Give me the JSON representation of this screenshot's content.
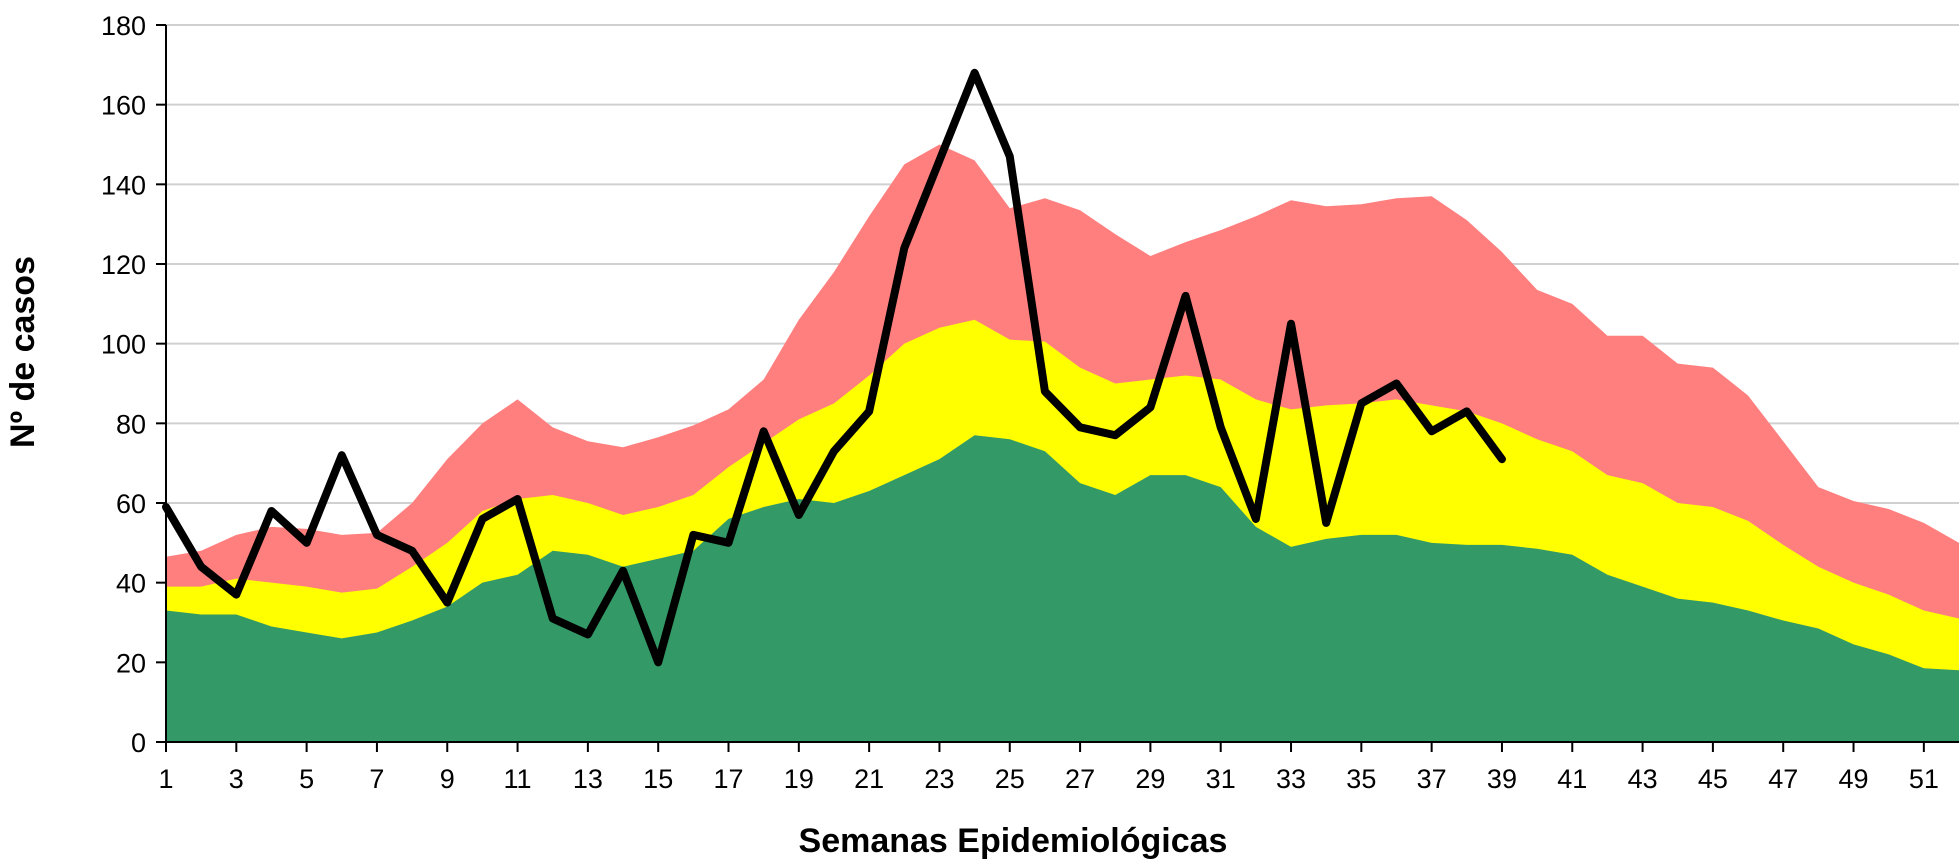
{
  "chart_data": {
    "type": "area",
    "x_label": "Semanas Epidemiológicas",
    "y_label": "Nº de casos",
    "x": [
      1,
      2,
      3,
      4,
      5,
      6,
      7,
      8,
      9,
      10,
      11,
      12,
      13,
      14,
      15,
      16,
      17,
      18,
      19,
      20,
      21,
      22,
      23,
      24,
      25,
      26,
      27,
      28,
      29,
      30,
      31,
      32,
      33,
      34,
      35,
      36,
      37,
      38,
      39,
      40,
      41,
      42,
      43,
      44,
      45,
      46,
      47,
      48,
      49,
      50,
      51,
      52
    ],
    "xlim": [
      1,
      52
    ],
    "xticks": [
      1,
      3,
      5,
      7,
      9,
      11,
      13,
      15,
      17,
      19,
      21,
      23,
      25,
      27,
      29,
      31,
      33,
      35,
      37,
      39,
      41,
      43,
      45,
      47,
      49,
      51
    ],
    "ylim": [
      0,
      180
    ],
    "yticks": [
      0,
      20,
      40,
      60,
      80,
      100,
      120,
      140,
      160,
      180
    ],
    "grid": true,
    "series": [
      {
        "kind": "area",
        "color": "#ff7f7f",
        "values": [
          46.5,
          48,
          52,
          54,
          53.5,
          52,
          52.5,
          60,
          71,
          80,
          86,
          79,
          75.5,
          74,
          76.5,
          79.5,
          83.5,
          91,
          106,
          118,
          132,
          145,
          150,
          146,
          134,
          136.5,
          133.5,
          127.5,
          122,
          125.5,
          128.5,
          132,
          136,
          134.5,
          135,
          136.5,
          137,
          131,
          123,
          113.5,
          110,
          102,
          102,
          95,
          94,
          87,
          75.5,
          64,
          60.5,
          58.5,
          55,
          50
        ]
      },
      {
        "kind": "area",
        "color": "#ffff00",
        "values": [
          39,
          39,
          41,
          40,
          39,
          37.5,
          38.5,
          44,
          50,
          58,
          61,
          62,
          60,
          57,
          59,
          62,
          69,
          75,
          81,
          85,
          92,
          100,
          104,
          106,
          101,
          100.5,
          94,
          90,
          91,
          92,
          91,
          86,
          83.5,
          84.5,
          85,
          86,
          84.5,
          83,
          80,
          76,
          73,
          67,
          65,
          60,
          59,
          55.5,
          49.5,
          44,
          40,
          37,
          33,
          31
        ]
      },
      {
        "kind": "area",
        "color": "#339966",
        "values": [
          33,
          32,
          32,
          29,
          27.5,
          26,
          27.5,
          30.5,
          34,
          40,
          42,
          48,
          47,
          44,
          46,
          48,
          56,
          59,
          61,
          60,
          63,
          67,
          71,
          77,
          76,
          73,
          65,
          62,
          67,
          67,
          64,
          54,
          49,
          51,
          52,
          52,
          50,
          49.5,
          49.5,
          48.5,
          47,
          42,
          39,
          36,
          35,
          33,
          30.5,
          28.5,
          24.5,
          22,
          18.5,
          18
        ]
      },
      {
        "kind": "line",
        "color": "#000000",
        "values": [
          59,
          44,
          37,
          58,
          50,
          72,
          52,
          48,
          35,
          56,
          61,
          31,
          27,
          43,
          20,
          52,
          50,
          78,
          57,
          73,
          83,
          124,
          146,
          168,
          147,
          88,
          79,
          77,
          84,
          112,
          79,
          56,
          105,
          55,
          85,
          90,
          78,
          83,
          71,
          null,
          null,
          null,
          null,
          null,
          null,
          null,
          null,
          null,
          null,
          null,
          null,
          null
        ]
      }
    ]
  }
}
